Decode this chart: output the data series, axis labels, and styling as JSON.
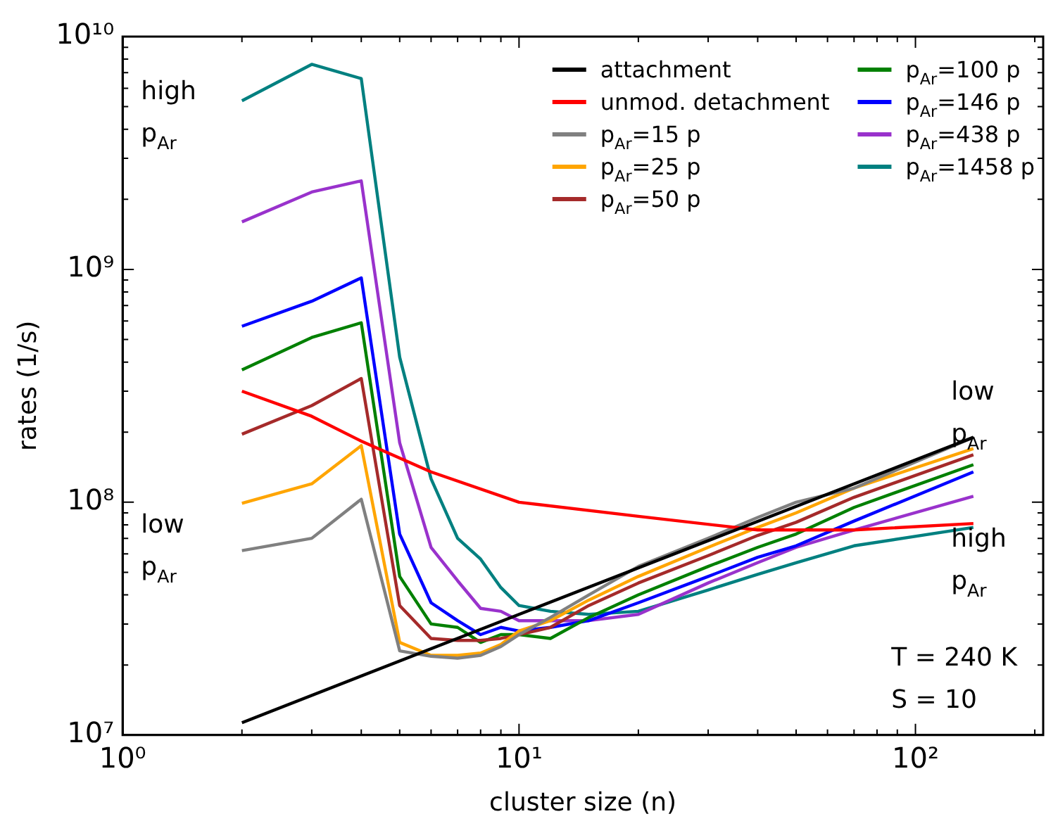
{
  "chart_data": {
    "type": "line",
    "xlabel": "cluster size (n)",
    "ylabel": "rates (1/s)",
    "log": "xy",
    "legend": "top right",
    "xlim": [
      1,
      210
    ],
    "ylim": [
      10000000.0,
      10000000000.0
    ],
    "xticks": [
      {
        "value": 1,
        "label": "10⁰"
      },
      {
        "value": 2,
        "label": null
      },
      {
        "value": 3,
        "label": null
      },
      {
        "value": 4,
        "label": null
      },
      {
        "value": 5,
        "label": null
      },
      {
        "value": 6,
        "label": null
      },
      {
        "value": 7,
        "label": null
      },
      {
        "value": 8,
        "label": null
      },
      {
        "value": 9,
        "label": null
      },
      {
        "value": 10,
        "label": "10¹"
      },
      {
        "value": 20,
        "label": null
      },
      {
        "value": 30,
        "label": null
      },
      {
        "value": 40,
        "label": null
      },
      {
        "value": 50,
        "label": null
      },
      {
        "value": 60,
        "label": null
      },
      {
        "value": 70,
        "label": null
      },
      {
        "value": 80,
        "label": null
      },
      {
        "value": 90,
        "label": null
      },
      {
        "value": 100,
        "label": "10²"
      },
      {
        "value": 200,
        "label": null
      }
    ],
    "yticks": [
      {
        "value": 10000000.0,
        "label": "10⁷"
      },
      {
        "value": 20000000.0,
        "label": null
      },
      {
        "value": 30000000.0,
        "label": null
      },
      {
        "value": 40000000.0,
        "label": null
      },
      {
        "value": 50000000.0,
        "label": null
      },
      {
        "value": 60000000.0,
        "label": null
      },
      {
        "value": 70000000.0,
        "label": null
      },
      {
        "value": 80000000.0,
        "label": null
      },
      {
        "value": 90000000.0,
        "label": null
      },
      {
        "value": 100000000.0,
        "label": "10⁸"
      },
      {
        "value": 200000000.0,
        "label": null
      },
      {
        "value": 300000000.0,
        "label": null
      },
      {
        "value": 400000000.0,
        "label": null
      },
      {
        "value": 500000000.0,
        "label": null
      },
      {
        "value": 600000000.0,
        "label": null
      },
      {
        "value": 700000000.0,
        "label": null
      },
      {
        "value": 800000000.0,
        "label": null
      },
      {
        "value": 900000000.0,
        "label": null
      },
      {
        "value": 1000000000.0,
        "label": "10⁹"
      },
      {
        "value": 2000000000.0,
        "label": null
      },
      {
        "value": 3000000000.0,
        "label": null
      },
      {
        "value": 4000000000.0,
        "label": null
      },
      {
        "value": 5000000000.0,
        "label": null
      },
      {
        "value": 6000000000.0,
        "label": null
      },
      {
        "value": 7000000000.0,
        "label": null
      },
      {
        "value": 8000000000.0,
        "label": null
      },
      {
        "value": 9000000000.0,
        "label": null
      },
      {
        "value": 10000000000.0,
        "label": "10¹⁰"
      }
    ],
    "x": [
      2,
      3,
      4,
      5,
      6,
      7,
      8,
      9,
      10,
      12,
      15,
      20,
      30,
      40,
      50,
      70,
      140
    ],
    "series": [
      {
        "name": "attachment",
        "color": "#000000",
        "x": [
          2,
          10,
          140
        ],
        "values": [
          11300000.0,
          33000000.0,
          190000000.0
        ]
      },
      {
        "name": "unmod. detachment",
        "color": "#ff0000",
        "x": [
          2,
          3,
          4,
          6,
          10,
          20,
          40,
          70,
          140
        ],
        "values": [
          300000000.0,
          234000000.0,
          183000000.0,
          135000000.0,
          100000000.0,
          87000000.0,
          76000000.0,
          76000000.0,
          81000000.0
        ]
      },
      {
        "name": "p$_{Ar}$=15 p",
        "color": "#808080",
        "values": [
          62000000.0,
          70000000.0,
          103000000.0,
          23000000.0,
          21800000.0,
          21400000.0,
          22000000.0,
          24000000.0,
          27000000.0,
          32000000.0,
          40000000.0,
          53000000.0,
          70000000.0,
          86000000.0,
          100000000.0,
          115000000.0,
          190000000.0
        ]
      },
      {
        "name": "p$_{Ar}$=25 p",
        "color": "#ffa500",
        "values": [
          99000000.0,
          120000000.0,
          175000000.0,
          25000000.0,
          22000000.0,
          22000000.0,
          22500000.0,
          24500000.0,
          28000000.0,
          31000000.0,
          38000000.0,
          48000000.0,
          64000000.0,
          78000000.0,
          90000000.0,
          115000000.0,
          170000000.0
        ]
      },
      {
        "name": "p$_{Ar}$=50 p",
        "color": "#a52a2a",
        "values": [
          196000000.0,
          260000000.0,
          340000000.0,
          36000000.0,
          26000000.0,
          25500000.0,
          25500000.0,
          26000000.0,
          27000000.0,
          29000000.0,
          36000000.0,
          45000000.0,
          59000000.0,
          72000000.0,
          82000000.0,
          105000000.0,
          160000000.0
        ]
      },
      {
        "name": "p$_{Ar}$=100 p",
        "color": "#008000",
        "values": [
          370000000.0,
          510000000.0,
          590000000.0,
          48000000.0,
          30000000.0,
          29000000.0,
          25000000.0,
          27000000.0,
          27000000.0,
          26000000.0,
          32000000.0,
          40000000.0,
          53000000.0,
          64000000.0,
          73000000.0,
          95000000.0,
          145000000.0
        ]
      },
      {
        "name": "p$_{Ar}$=146 p",
        "color": "#0000ff",
        "values": [
          570000000.0,
          730000000.0,
          920000000.0,
          73000000.0,
          37000000.0,
          31000000.0,
          27000000.0,
          29000000.0,
          28000000.0,
          29000000.0,
          31000000.0,
          37000000.0,
          48000000.0,
          58000000.0,
          65000000.0,
          83000000.0,
          135000000.0
        ]
      },
      {
        "name": "p$_{Ar}$=438 p",
        "color": "#9932cc",
        "values": [
          1600000000.0,
          2150000000.0,
          2400000000.0,
          180000000.0,
          64000000.0,
          46000000.0,
          35000000.0,
          34000000.0,
          31000000.0,
          31000000.0,
          31000000.0,
          33000000.0,
          45000000.0,
          55000000.0,
          64000000.0,
          76000000.0,
          106000000.0
        ]
      },
      {
        "name": "p$_{Ar}$=1458 p",
        "color": "#008080",
        "values": [
          5300000000.0,
          7600000000.0,
          6600000000.0,
          420000000.0,
          126000000.0,
          70000000.0,
          57000000.0,
          43000000.0,
          36000000.0,
          34000000.0,
          33000000.0,
          34000000.0,
          42000000.0,
          49000000.0,
          55000000.0,
          65000000.0,
          78000000.0
        ]
      }
    ],
    "annotations": [
      "high\np$_{Ar}$",
      "low\np$_{Ar}$",
      "low\np$_{Ar}$",
      "high\np$_{Ar}$",
      "T = 240 K\nS = 10"
    ]
  }
}
